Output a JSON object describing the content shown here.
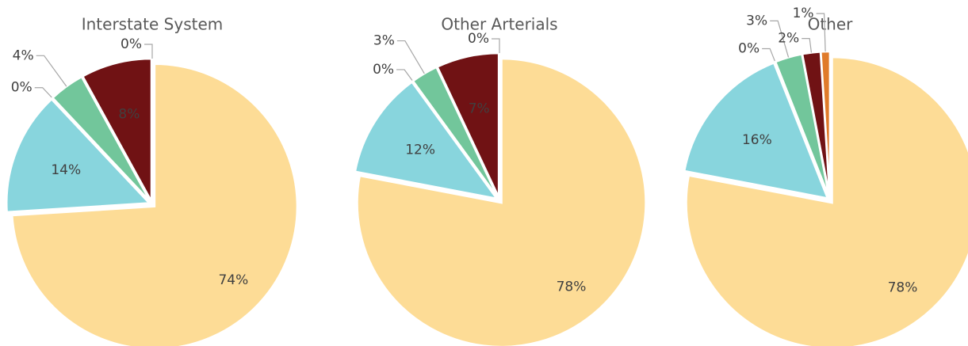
{
  "chart_data": [
    {
      "type": "pie",
      "title": "Interstate System",
      "categories": [
        null,
        null,
        null,
        null,
        null,
        null
      ],
      "values": [
        74,
        14,
        0,
        4,
        8,
        0
      ],
      "value_labels": [
        "74%",
        "14%",
        "0%",
        "4%",
        "8%",
        "0%"
      ],
      "colors": [
        "#fddc96",
        "#88d5dd",
        "#a5a5a5",
        "#72c69b",
        "#701214",
        "#e07b2a"
      ]
    },
    {
      "type": "pie",
      "title": "Other Arterials",
      "categories": [
        null,
        null,
        null,
        null,
        null,
        null
      ],
      "values": [
        78,
        12,
        0,
        3,
        7,
        0
      ],
      "value_labels": [
        "78%",
        "12%",
        "0%",
        "3%",
        "7%",
        "0%"
      ],
      "colors": [
        "#fddc96",
        "#88d5dd",
        "#a5a5a5",
        "#72c69b",
        "#701214",
        "#e07b2a"
      ]
    },
    {
      "type": "pie",
      "title": "Other",
      "categories": [
        null,
        null,
        null,
        null,
        null,
        null
      ],
      "values": [
        78,
        16,
        0,
        3,
        2,
        1
      ],
      "value_labels": [
        "78%",
        "16%",
        "0%",
        "3%",
        "2%",
        "1%"
      ],
      "colors": [
        "#fddc96",
        "#88d5dd",
        "#a5a5a5",
        "#72c69b",
        "#701214",
        "#e07b2a"
      ]
    }
  ]
}
